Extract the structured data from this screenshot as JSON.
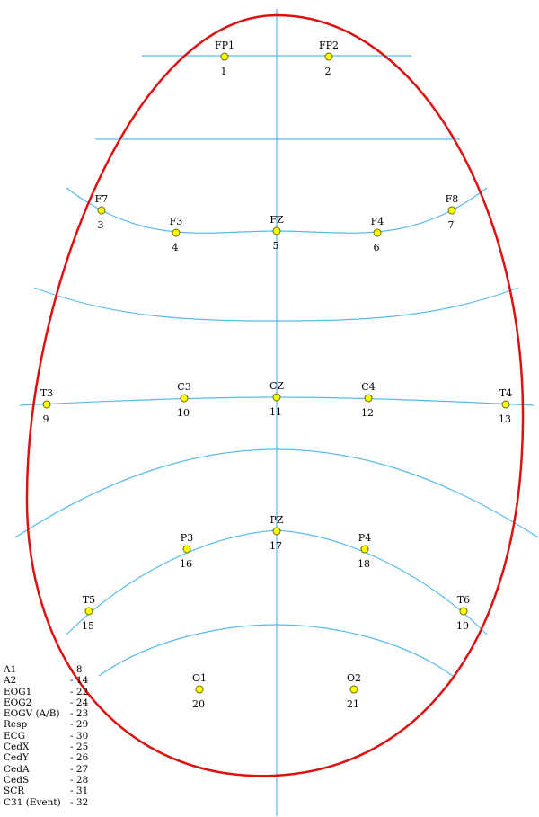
{
  "colors": {
    "head_outline": "#dd1111",
    "guide_line": "#55bbee",
    "electrode_fill": "#ffff00",
    "electrode_stroke": "#666600",
    "text": "#000000"
  },
  "electrodes": [
    {
      "label": "FP1",
      "number": "1"
    },
    {
      "label": "FP2",
      "number": "2"
    },
    {
      "label": "F7",
      "number": "3"
    },
    {
      "label": "F3",
      "number": "4"
    },
    {
      "label": "FZ",
      "number": "5"
    },
    {
      "label": "F4",
      "number": "6"
    },
    {
      "label": "F8",
      "number": "7"
    },
    {
      "label": "T3",
      "number": "9"
    },
    {
      "label": "C3",
      "number": "10"
    },
    {
      "label": "CZ",
      "number": "11"
    },
    {
      "label": "C4",
      "number": "12"
    },
    {
      "label": "T4",
      "number": "13"
    },
    {
      "label": "T5",
      "number": "15"
    },
    {
      "label": "P3",
      "number": "16"
    },
    {
      "label": "PZ",
      "number": "17"
    },
    {
      "label": "P4",
      "number": "18"
    },
    {
      "label": "T6",
      "number": "19"
    },
    {
      "label": "O1",
      "number": "20"
    },
    {
      "label": "O2",
      "number": "21"
    }
  ],
  "channel_legend": [
    {
      "name": "A1",
      "value": "- 8"
    },
    {
      "name": "A2",
      "value": "- 14"
    },
    {
      "name": "EOG1",
      "value": "- 22"
    },
    {
      "name": "EOG2",
      "value": "- 24"
    },
    {
      "name": "EOGV (A/B)",
      "value": "- 23"
    },
    {
      "name": "Resp",
      "value": "- 29"
    },
    {
      "name": "ECG",
      "value": "- 30"
    },
    {
      "name": "CedX",
      "value": "- 25"
    },
    {
      "name": "CedY",
      "value": "- 26"
    },
    {
      "name": "CedA",
      "value": "- 27"
    },
    {
      "name": "CedS",
      "value": "- 28"
    },
    {
      "name": "SCR",
      "value": "- 31"
    },
    {
      "name": "C31 (Event)",
      "value": "- 32"
    }
  ]
}
